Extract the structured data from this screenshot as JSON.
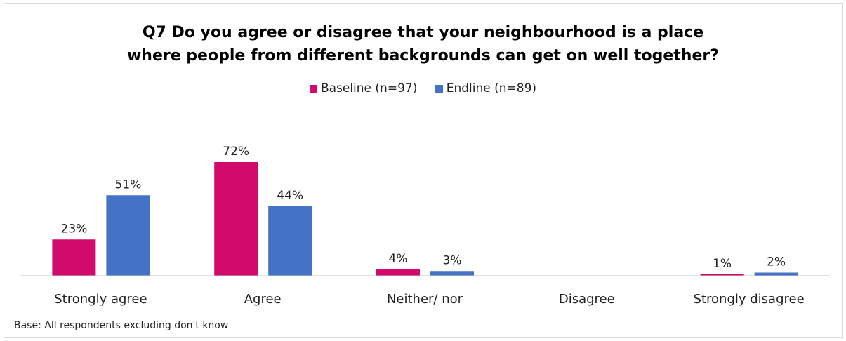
{
  "chart_data": {
    "type": "bar",
    "title_lines": [
      "Q7 Do you agree or disagree that your neighbourhood is a place",
      "where people from different backgrounds can get on well together?"
    ],
    "categories": [
      "Strongly agree",
      "Agree",
      "Neither/ nor",
      "Disagree",
      "Strongly disagree"
    ],
    "series": [
      {
        "name": "Baseline (n=97)",
        "color": "#d10a6c",
        "values": [
          23,
          72,
          4,
          null,
          1
        ],
        "labels": [
          "23%",
          "72%",
          "4%",
          "",
          "1%"
        ]
      },
      {
        "name": "Endline (n=89)",
        "color": "#4472c4",
        "values": [
          51,
          44,
          3,
          null,
          2
        ],
        "labels": [
          "51%",
          "44%",
          "3%",
          "",
          "2%"
        ]
      }
    ],
    "ylim": [
      0,
      100
    ],
    "grid": false,
    "legend_position": "top-center",
    "footnote": "Base: All respondents excluding don't know"
  }
}
